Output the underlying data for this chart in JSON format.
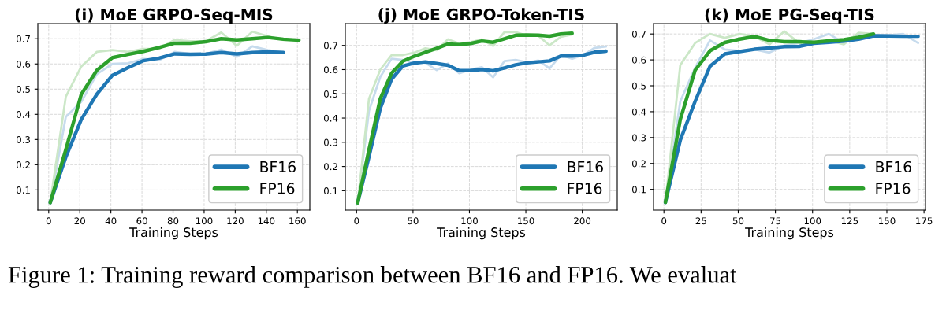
{
  "chart_data": [
    {
      "type": "line",
      "title": "(i) MoE GRPO-Seq-MIS",
      "xlabel": "Training Steps",
      "xlim": [
        -7,
        168
      ],
      "xticks": [
        0,
        20,
        40,
        60,
        80,
        100,
        120,
        140,
        160
      ],
      "ylim": [
        0.02,
        0.76
      ],
      "yticks": [
        0.1,
        0.2,
        0.3,
        0.4,
        0.5,
        0.6,
        0.7
      ],
      "grid": true,
      "legend": "bottom right",
      "line_style": "solid",
      "marker": "none",
      "annotations": [
        "Figure 1: Training reward comparison between BF16 and FP16. We evaluat"
      ],
      "series": [
        {
          "color": "#c6dbed",
          "x": [
            1,
            11,
            21,
            31,
            41,
            51,
            61,
            71,
            81,
            91,
            101,
            111,
            121,
            131,
            141,
            151
          ],
          "values": [
            0.05,
            0.39,
            0.45,
            0.56,
            0.6,
            0.603,
            0.62,
            0.615,
            0.648,
            0.64,
            0.64,
            0.657,
            0.628,
            0.67,
            0.655,
            0.645
          ]
        },
        {
          "color": "#cbe7c7",
          "x": [
            1,
            11,
            21,
            31,
            41,
            51,
            61,
            71,
            81,
            91,
            101,
            111,
            121,
            131,
            141,
            151,
            161
          ],
          "values": [
            0.05,
            0.47,
            0.59,
            0.648,
            0.655,
            0.648,
            0.66,
            0.66,
            0.695,
            0.69,
            0.69,
            0.725,
            0.672,
            0.728,
            0.71,
            0.695,
            0.694
          ]
        },
        {
          "name": "BF16",
          "color": "#1f77b4",
          "x": [
            1,
            11,
            21,
            31,
            41,
            51,
            61,
            71,
            81,
            91,
            101,
            111,
            121,
            131,
            141,
            151
          ],
          "values": [
            0.05,
            0.23,
            0.38,
            0.48,
            0.555,
            0.585,
            0.613,
            0.623,
            0.64,
            0.638,
            0.639,
            0.645,
            0.64,
            0.645,
            0.648,
            0.645
          ]
        },
        {
          "name": "FP16",
          "color": "#2ca02c",
          "x": [
            1,
            11,
            21,
            31,
            41,
            51,
            61,
            71,
            81,
            91,
            101,
            111,
            121,
            131,
            141,
            151,
            161
          ],
          "values": [
            0.05,
            0.26,
            0.48,
            0.575,
            0.625,
            0.638,
            0.65,
            0.665,
            0.682,
            0.682,
            0.688,
            0.7,
            0.695,
            0.7,
            0.705,
            0.698,
            0.694
          ]
        }
      ]
    },
    {
      "type": "line",
      "title": "(j) MoE GRPO-Token-TIS",
      "xlabel": "Training Steps",
      "xlim": [
        -10,
        231
      ],
      "xticks": [
        0,
        50,
        100,
        150,
        200
      ],
      "ylim": [
        0.02,
        0.79
      ],
      "yticks": [
        0.1,
        0.2,
        0.3,
        0.4,
        0.5,
        0.6,
        0.7
      ],
      "grid": true,
      "legend": "bottom right",
      "line_style": "solid",
      "marker": "none",
      "series": [
        {
          "color": "#c6dbed",
          "x": [
            1,
            11,
            21,
            31,
            41,
            51,
            61,
            71,
            81,
            91,
            101,
            111,
            121,
            131,
            141,
            151,
            161,
            171,
            181,
            191,
            201,
            211,
            221
          ],
          "values": [
            0.05,
            0.43,
            0.57,
            0.645,
            0.64,
            0.63,
            0.628,
            0.598,
            0.625,
            0.585,
            0.6,
            0.61,
            0.568,
            0.635,
            0.64,
            0.63,
            0.638,
            0.605,
            0.66,
            0.645,
            0.66,
            0.69,
            0.695
          ]
        },
        {
          "color": "#cbe7c7",
          "x": [
            1,
            11,
            21,
            31,
            41,
            51,
            61,
            71,
            81,
            91,
            101,
            111,
            121,
            131,
            141,
            151,
            161,
            171,
            181,
            191
          ],
          "values": [
            0.05,
            0.48,
            0.6,
            0.66,
            0.66,
            0.67,
            0.688,
            0.68,
            0.725,
            0.708,
            0.713,
            0.725,
            0.698,
            0.755,
            0.755,
            0.74,
            0.74,
            0.7,
            0.735,
            0.745
          ]
        },
        {
          "name": "BF16",
          "color": "#1f77b4",
          "x": [
            1,
            11,
            21,
            31,
            41,
            51,
            61,
            71,
            81,
            91,
            101,
            111,
            121,
            131,
            141,
            151,
            161,
            171,
            181,
            191,
            201,
            211,
            221
          ],
          "values": [
            0.05,
            0.24,
            0.44,
            0.56,
            0.615,
            0.627,
            0.632,
            0.625,
            0.618,
            0.596,
            0.596,
            0.601,
            0.595,
            0.607,
            0.62,
            0.628,
            0.632,
            0.636,
            0.656,
            0.656,
            0.66,
            0.672,
            0.676
          ]
        },
        {
          "name": "FP16",
          "color": "#2ca02c",
          "x": [
            1,
            11,
            21,
            31,
            41,
            51,
            61,
            71,
            81,
            91,
            101,
            111,
            121,
            131,
            141,
            151,
            161,
            171,
            181,
            191
          ],
          "values": [
            0.05,
            0.27,
            0.48,
            0.585,
            0.635,
            0.655,
            0.672,
            0.688,
            0.706,
            0.703,
            0.708,
            0.718,
            0.713,
            0.727,
            0.742,
            0.743,
            0.742,
            0.738,
            0.747,
            0.75
          ]
        }
      ]
    },
    {
      "type": "line",
      "title": "(k) MoE PG-Seq-TIS",
      "xlabel": "Training Steps",
      "xlim": [
        -7,
        176
      ],
      "xticks": [
        0,
        25,
        50,
        75,
        100,
        125,
        150,
        175
      ],
      "ylim": [
        0.02,
        0.74
      ],
      "yticks": [
        0.1,
        0.2,
        0.3,
        0.4,
        0.5,
        0.6,
        0.7
      ],
      "grid": true,
      "legend": "bottom right",
      "line_style": "solid",
      "marker": "none",
      "series": [
        {
          "color": "#c6dbed",
          "x": [
            1,
            11,
            21,
            31,
            41,
            51,
            61,
            71,
            81,
            91,
            101,
            111,
            121,
            131,
            141,
            151,
            161,
            171
          ],
          "values": [
            0.05,
            0.44,
            0.57,
            0.675,
            0.64,
            0.635,
            0.64,
            0.628,
            0.655,
            0.665,
            0.68,
            0.7,
            0.665,
            0.7,
            0.695,
            0.695,
            0.7,
            0.665
          ]
        },
        {
          "color": "#cbe7c7",
          "x": [
            1,
            11,
            21,
            31,
            41,
            51,
            61,
            71,
            81,
            91,
            101,
            111,
            121,
            131,
            141
          ],
          "values": [
            0.05,
            0.58,
            0.665,
            0.7,
            0.685,
            0.7,
            0.69,
            0.66,
            0.71,
            0.665,
            0.665,
            0.675,
            0.66,
            0.705,
            0.7
          ]
        },
        {
          "name": "BF16",
          "color": "#1f77b4",
          "x": [
            1,
            11,
            21,
            31,
            41,
            51,
            61,
            71,
            81,
            91,
            101,
            111,
            121,
            131,
            141,
            151,
            161,
            171
          ],
          "values": [
            0.05,
            0.29,
            0.44,
            0.575,
            0.623,
            0.632,
            0.641,
            0.646,
            0.651,
            0.652,
            0.664,
            0.668,
            0.672,
            0.68,
            0.693,
            0.692,
            0.691,
            0.691
          ]
        },
        {
          "name": "FP16",
          "color": "#2ca02c",
          "x": [
            1,
            11,
            21,
            31,
            41,
            51,
            61,
            71,
            81,
            91,
            101,
            111,
            121,
            131,
            141
          ],
          "values": [
            0.05,
            0.37,
            0.56,
            0.635,
            0.667,
            0.68,
            0.69,
            0.675,
            0.67,
            0.67,
            0.668,
            0.673,
            0.678,
            0.687,
            0.7
          ]
        }
      ]
    }
  ]
}
